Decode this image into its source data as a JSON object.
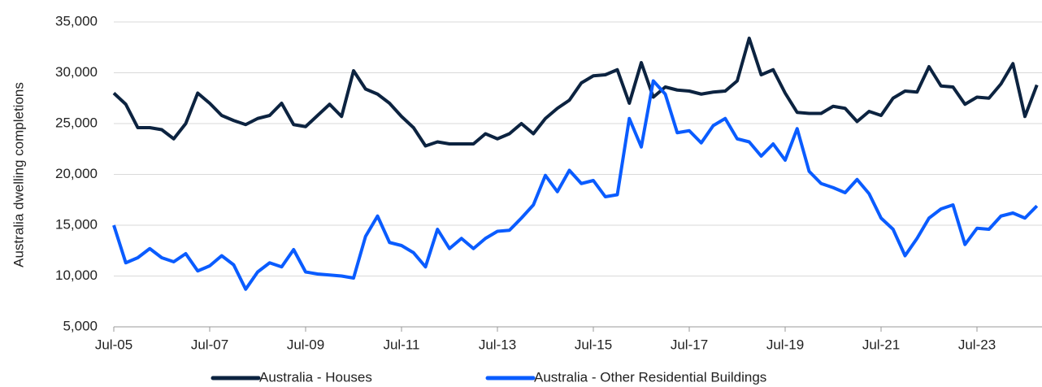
{
  "chart_data": {
    "type": "line",
    "y_label": "Australia dwelling completions",
    "categories": [
      "Jul-05",
      null,
      null,
      null,
      null,
      null,
      null,
      null,
      "Jul-07",
      null,
      null,
      null,
      null,
      null,
      null,
      null,
      "Jul-09",
      null,
      null,
      null,
      null,
      null,
      null,
      null,
      "Jul-11",
      null,
      null,
      null,
      null,
      null,
      null,
      null,
      "Jul-13",
      null,
      null,
      null,
      null,
      null,
      null,
      null,
      "Jul-15",
      null,
      null,
      null,
      null,
      null,
      null,
      null,
      "Jul-17",
      null,
      null,
      null,
      null,
      null,
      null,
      null,
      "Jul-19",
      null,
      null,
      null,
      null,
      null,
      null,
      null,
      "Jul-21",
      null,
      null,
      null,
      null,
      null,
      null,
      null,
      "Jul-23",
      null,
      null,
      null,
      null,
      null
    ],
    "series": [
      {
        "name": "Australia - Houses",
        "color": "#0c2340",
        "values": [
          28000,
          26900,
          24600,
          24600,
          24400,
          23500,
          25000,
          28000,
          27000,
          25800,
          25300,
          24900,
          25500,
          25800,
          27000,
          24900,
          24700,
          25800,
          26900,
          25700,
          30200,
          28400,
          27900,
          27000,
          25700,
          24600,
          22800,
          23200,
          23000,
          23000,
          23000,
          24000,
          23500,
          24000,
          25000,
          24000,
          25500,
          26500,
          27300,
          29000,
          29700,
          29800,
          30300,
          27000,
          31000,
          27600,
          28600,
          28300,
          28200,
          27900,
          28100,
          28200,
          29200,
          33400,
          29800,
          30300,
          28000,
          26100,
          26000,
          26000,
          26700,
          26500,
          25200,
          26200,
          25800,
          27500,
          28200,
          28100,
          30600,
          28700,
          28600,
          26900,
          27600,
          27500,
          28900,
          30900,
          25700,
          28800
        ]
      },
      {
        "name": "Australia - Other Residential Buildings",
        "color": "#0a5cff",
        "values": [
          15000,
          11300,
          11800,
          12700,
          11800,
          11400,
          12200,
          10500,
          11000,
          12000,
          11100,
          8700,
          10400,
          11300,
          10900,
          12600,
          10400,
          10200,
          10100,
          10000,
          9800,
          13900,
          15900,
          13300,
          13000,
          12300,
          10900,
          14600,
          12700,
          13700,
          12700,
          13700,
          14400,
          14500,
          15700,
          17000,
          19900,
          18300,
          20400,
          19100,
          19400,
          17800,
          18000,
          25500,
          22700,
          29200,
          27900,
          24100,
          24300,
          23100,
          24800,
          25500,
          23500,
          23200,
          21800,
          23000,
          21400,
          24500,
          20300,
          19100,
          18700,
          18200,
          19500,
          18100,
          15700,
          14600,
          12000,
          13700,
          15700,
          16600,
          17000,
          13100,
          14700,
          14600,
          15900,
          16200,
          15700,
          16900
        ]
      }
    ],
    "ylim": [
      5000,
      35000
    ],
    "yticks": [
      {
        "value": 5000,
        "label": "5,000"
      },
      {
        "value": 10000,
        "label": "10,000"
      },
      {
        "value": 15000,
        "label": "15,000"
      },
      {
        "value": 20000,
        "label": "20,000"
      },
      {
        "value": 25000,
        "label": "25,000"
      },
      {
        "value": 30000,
        "label": "30,000"
      },
      {
        "value": 35000,
        "label": "35,000"
      }
    ],
    "grid": true,
    "legend": "bottom"
  }
}
